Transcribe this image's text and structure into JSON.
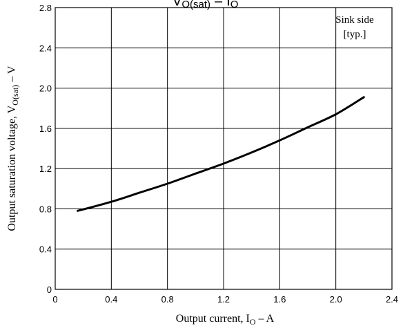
{
  "chart_data": {
    "type": "line",
    "title": "VO(sat) – IO",
    "title_parts": {
      "v": "V",
      "v_sub": "O(sat)",
      "dash": "–",
      "i": "I",
      "i_sub": "O"
    },
    "xlabel": "Output current, IO – A",
    "xlabel_parts": {
      "prefix": "Output current, I",
      "sub": "O",
      "suffix": " – A"
    },
    "ylabel": "Output saturation voltage, VO(sat) – V",
    "ylabel_parts": {
      "prefix": "Output saturation voltage, V",
      "sub": "O(sat)",
      "suffix": " – V"
    },
    "xlim": [
      0,
      2.4
    ],
    "ylim": [
      0,
      2.8
    ],
    "xticks": [
      "0",
      "0.4",
      "0.8",
      "1.2",
      "1.6",
      "2.0",
      "2.4"
    ],
    "yticks": [
      "0",
      "0.4",
      "0.8",
      "1.2",
      "1.6",
      "2.0",
      "2.4",
      "2.8"
    ],
    "grid": true,
    "annotation": [
      "Sink side",
      "[typ.]"
    ],
    "series": [
      {
        "x": [
          0.16,
          0.4,
          0.6,
          0.8,
          1.0,
          1.2,
          1.4,
          1.6,
          1.8,
          2.0,
          2.2
        ],
        "y": [
          0.78,
          0.87,
          0.96,
          1.05,
          1.15,
          1.25,
          1.36,
          1.48,
          1.61,
          1.74,
          1.91
        ]
      }
    ]
  }
}
